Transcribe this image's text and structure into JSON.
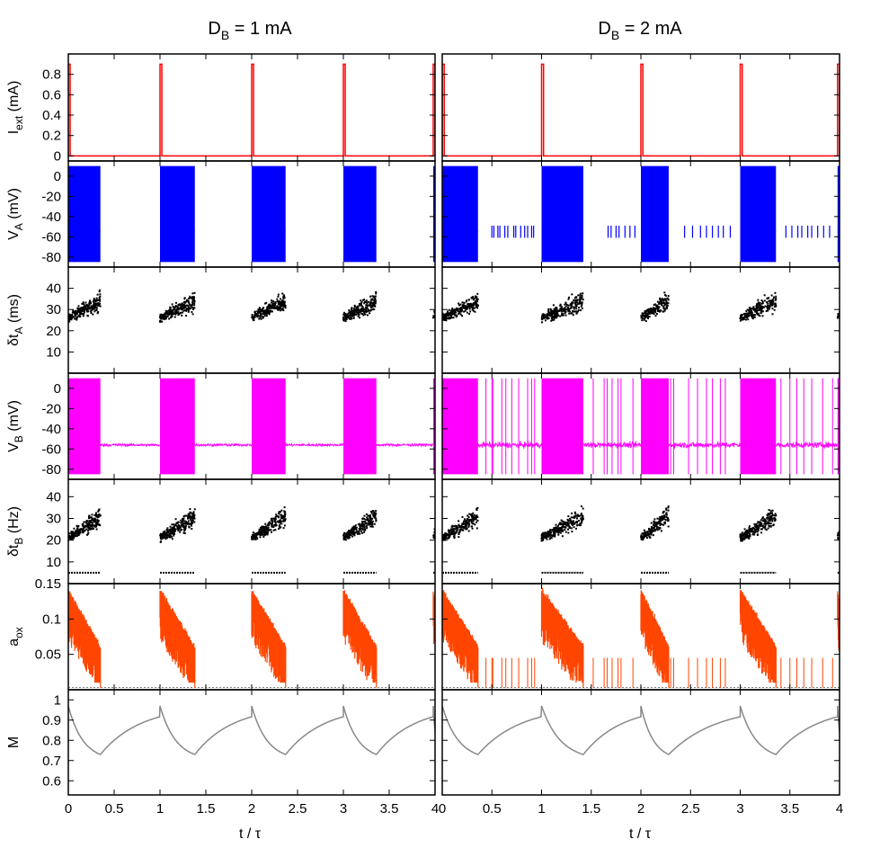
{
  "columns": [
    {
      "title_main": "D",
      "title_sub": "B",
      "title_rest": " = 1 mA",
      "case": "D1"
    },
    {
      "title_main": "D",
      "title_sub": "B",
      "title_rest": " = 2 mA",
      "case": "D2"
    }
  ],
  "colors": {
    "iext": "#ff0000",
    "va": "#0000ff",
    "dta": "#000000",
    "vb": "#ff00ff",
    "dtb": "#000000",
    "aox": "#ff4500",
    "m": "#888888"
  },
  "chart_data": {
    "type": "line",
    "x": {
      "label": "t / τ",
      "range": [
        0,
        4
      ],
      "ticks": [
        "0",
        "0.5",
        "1",
        "1.5",
        "2",
        "2.5",
        "3",
        "3.5",
        "4"
      ]
    },
    "panels": [
      {
        "key": "iext",
        "type": "line",
        "ylabel_main": "I",
        "ylabel_sub": "ext",
        "ylabel_rest": " (mA)",
        "ylim": [
          -0.05,
          1.0
        ],
        "yticks": [
          "0",
          "0.2",
          "0.4",
          "0.6",
          "0.8"
        ],
        "ytick_values": [
          0,
          0.2,
          0.4,
          0.6,
          0.8
        ],
        "pulse_amplitude": 0.9,
        "pulse_width": 0.02,
        "pulse_starts": [
          0,
          1,
          2,
          3,
          3.98
        ]
      },
      {
        "key": "va",
        "type": "line",
        "ylabel_main": "V",
        "ylabel_sub": "A",
        "ylabel_rest": " (mV)",
        "ylim": [
          -90,
          15
        ],
        "yticks": [
          "-80",
          "-60",
          "-40",
          "-20",
          "0"
        ],
        "ytick_values": [
          -80,
          -60,
          -40,
          -20,
          0
        ],
        "burst_range": [
          -85,
          10
        ],
        "rest_level": -55,
        "bursts": {
          "D1": [
            [
              0,
              0.35
            ],
            [
              1,
              1.38
            ],
            [
              2,
              2.37
            ],
            [
              3,
              3.36
            ],
            [
              3.98,
              4.05
            ]
          ],
          "D2": [
            [
              0,
              0.36
            ],
            [
              1,
              1.42
            ],
            [
              2,
              2.28
            ],
            [
              3,
              3.36
            ],
            [
              3.98,
              4.05
            ]
          ]
        },
        "sparse_spikes": {
          "D1": [],
          "D2": [
            0.5,
            0.52,
            0.56,
            0.58,
            0.63,
            0.66,
            0.72,
            0.74,
            0.79,
            0.83,
            0.86,
            0.9,
            0.92,
            1.67,
            1.7,
            1.75,
            1.78,
            1.84,
            1.89,
            1.94,
            2.44,
            2.52,
            2.6,
            2.66,
            2.72,
            2.78,
            2.83,
            2.9,
            3.46,
            3.52,
            3.58,
            3.62,
            3.68,
            3.72,
            3.78,
            3.84,
            3.9
          ]
        }
      },
      {
        "key": "dta",
        "type": "scatter",
        "ylabel_main": "δt",
        "ylabel_sub": "A",
        "ylabel_rest": " (ms)",
        "ylim": [
          0,
          50
        ],
        "yticks": [
          "10",
          "20",
          "30",
          "40"
        ],
        "ytick_values": [
          10,
          20,
          30,
          40
        ],
        "cluster_start_mean": 26,
        "cluster_end_mean": 34,
        "spread": 5
      },
      {
        "key": "vb",
        "type": "line",
        "ylabel_main": "V",
        "ylabel_sub": "B",
        "ylabel_rest": " (mV)",
        "ylim": [
          -90,
          15
        ],
        "yticks": [
          "-80",
          "-60",
          "-40",
          "-20",
          "0"
        ],
        "ytick_values": [
          -80,
          -60,
          -40,
          -20,
          0
        ],
        "burst_range": [
          -85,
          10
        ],
        "rest_level": -56,
        "rest_noise": {
          "D1": 2.5,
          "D2": 5
        },
        "extra_spikes": {
          "D1": [],
          "D2": [
            0.44,
            0.5,
            0.51,
            0.6,
            0.64,
            0.7,
            0.77,
            0.86,
            0.9,
            0.93,
            1.52,
            1.63,
            1.66,
            1.71,
            1.77,
            1.8,
            1.92,
            2.3,
            2.33,
            2.48,
            2.57,
            2.66,
            2.72,
            2.8,
            2.85,
            3.41,
            3.5,
            3.57,
            3.64,
            3.72,
            3.83,
            3.93
          ]
        }
      },
      {
        "key": "dtb",
        "type": "scatter",
        "ylabel_main": "δt",
        "ylabel_sub": "B",
        "ylabel_rest": " (Hz)",
        "ylim": [
          0,
          48
        ],
        "yticks": [
          "10",
          "20",
          "30",
          "40"
        ],
        "ytick_values": [
          10,
          20,
          30,
          40
        ],
        "cluster_start_mean": 21,
        "cluster_end_mean": 31,
        "spread": 5,
        "floor_value": 5
      },
      {
        "key": "aox",
        "type": "line",
        "ylabel_main": "a",
        "ylabel_sub": "ox",
        "ylabel_rest": "",
        "ylim": [
          0,
          0.15
        ],
        "yticks": [
          "0.05",
          "0.1",
          "0.15"
        ],
        "ytick_values": [
          0.05,
          0.1,
          0.15
        ],
        "burst_peak": 0.14,
        "burst_end": 0.06,
        "baseline": 0.003
      },
      {
        "key": "m",
        "type": "line",
        "ylabel_main": "M",
        "ylabel_sub": "",
        "ylabel_rest": "",
        "ylim": [
          0.53,
          1.05
        ],
        "yticks": [
          "0.6",
          "0.7",
          "0.8",
          "0.9",
          "1"
        ],
        "ytick_values": [
          0.6,
          0.7,
          0.8,
          0.9,
          1.0
        ],
        "max": 0.97,
        "min": 0.7,
        "recovery_start": 0.7
      }
    ]
  }
}
